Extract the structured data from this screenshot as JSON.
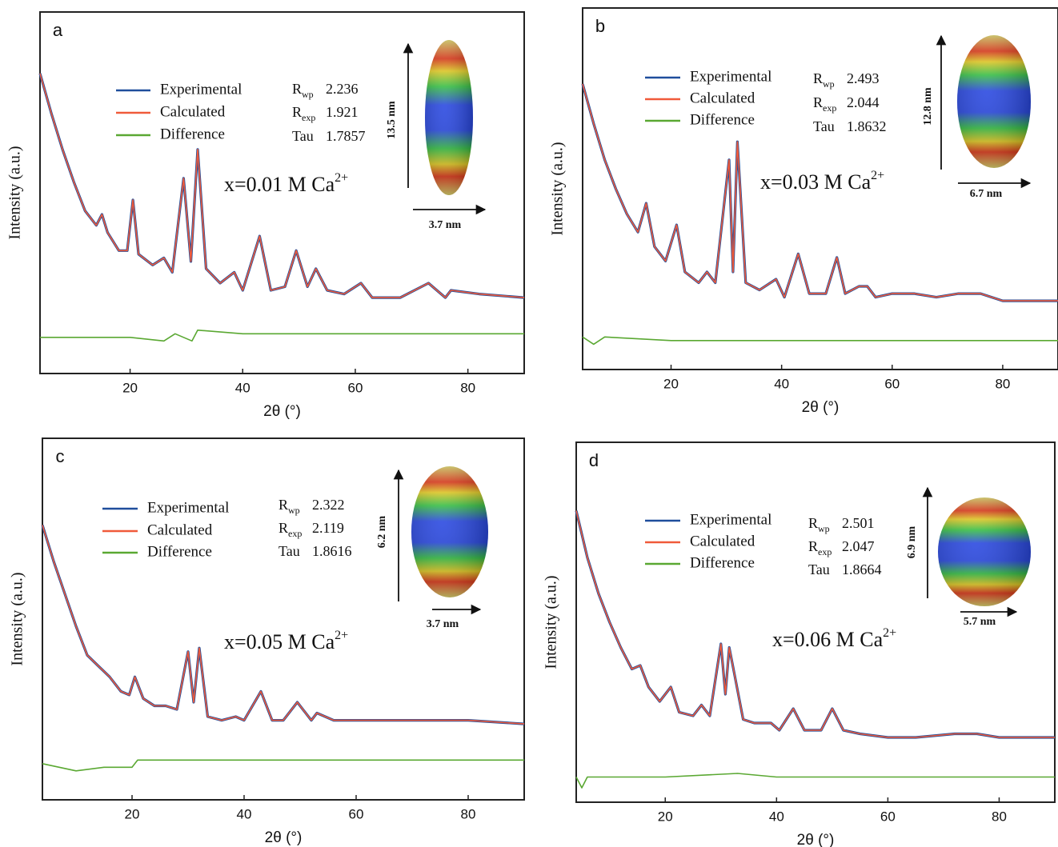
{
  "chart_data": [
    {
      "type": "line",
      "panel": "a",
      "xlabel": "2θ (°)",
      "ylabel": "Intensity (a.u.)",
      "xlim": [
        4,
        90
      ],
      "ylim": [
        0,
        100
      ],
      "xticks": [
        20,
        40,
        60,
        80
      ],
      "annotation": {
        "text": "x=0.01 M Ca",
        "superscript": "2+"
      },
      "stats": [
        {
          "label": "R",
          "sub": "wp",
          "value": 2.236
        },
        {
          "label": "R",
          "sub": "exp",
          "value": 1.921
        },
        {
          "label": "Tau",
          "value": 1.7857
        }
      ],
      "size_labels": {
        "vertical": "13.5 nm",
        "horizontal": "3.7 nm"
      },
      "series": [
        {
          "name": "Experimental",
          "color": "#1f4e9c",
          "x": [
            4,
            6,
            8,
            10,
            12,
            14,
            15,
            16,
            18,
            19.5,
            20.5,
            21.5,
            24,
            26,
            27.5,
            29.5,
            30.8,
            32,
            33.5,
            36,
            38.5,
            40,
            43,
            45,
            47.5,
            49.5,
            51.5,
            53,
            55,
            58,
            61,
            63,
            68,
            73,
            76,
            77,
            82,
            90
          ],
          "values": [
            83,
            72,
            62,
            53,
            45,
            41,
            44,
            39,
            34,
            34,
            48,
            33,
            30,
            32,
            28,
            54,
            31,
            62,
            29,
            25,
            28,
            23,
            38,
            23,
            24,
            34,
            24,
            29,
            23,
            22,
            25,
            21,
            21,
            25,
            21,
            23,
            22,
            21
          ]
        },
        {
          "name": "Calculated",
          "color": "#f05a3a",
          "x": [
            4,
            6,
            8,
            10,
            12,
            14,
            15,
            16,
            18,
            19.5,
            20.5,
            21.5,
            24,
            26,
            27.5,
            29.5,
            30.8,
            32,
            33.5,
            36,
            38.5,
            40,
            43,
            45,
            47.5,
            49.5,
            51.5,
            53,
            55,
            58,
            61,
            63,
            68,
            73,
            76,
            77,
            82,
            90
          ],
          "values": [
            83,
            72,
            62,
            53,
            45,
            41,
            44,
            39,
            34,
            34,
            48,
            33,
            30,
            32,
            28,
            54,
            31,
            62,
            29,
            25,
            28,
            23,
            38,
            23,
            24,
            34,
            24,
            29,
            23,
            22,
            25,
            21,
            21,
            25,
            21,
            23,
            22,
            21
          ]
        },
        {
          "name": "Difference",
          "color": "#5aa832",
          "x": [
            4,
            10,
            20,
            26,
            28,
            31,
            32,
            40,
            60,
            90
          ],
          "values": [
            10,
            10,
            10,
            9,
            11,
            9,
            12,
            11,
            11,
            11
          ]
        }
      ]
    },
    {
      "type": "line",
      "panel": "b",
      "xlabel": "2θ (°)",
      "ylabel": "Intensity (a.u.)",
      "xlim": [
        4,
        90
      ],
      "ylim": [
        0,
        100
      ],
      "xticks": [
        20,
        40,
        60,
        80
      ],
      "annotation": {
        "text": "x=0.03 M Ca",
        "superscript": "2+"
      },
      "stats": [
        {
          "label": "R",
          "sub": "wp",
          "value": 2.493
        },
        {
          "label": "R",
          "sub": "exp",
          "value": 2.044
        },
        {
          "label": "Tau",
          "value": 1.8632
        }
      ],
      "size_labels": {
        "vertical": "12.8 nm",
        "horizontal": "6.7 nm"
      },
      "series": [
        {
          "name": "Experimental",
          "color": "#1f4e9c",
          "x": [
            4,
            6,
            8,
            10,
            12,
            14,
            15.5,
            17,
            19,
            21,
            22.5,
            25,
            26.5,
            28,
            30.5,
            31.2,
            32,
            33.5,
            36,
            39,
            40.5,
            43,
            45,
            48,
            50,
            51.5,
            54,
            55.5,
            57,
            60,
            64,
            68,
            72,
            76,
            80,
            90
          ],
          "values": [
            79,
            68,
            58,
            50,
            43,
            38,
            46,
            34,
            30,
            40,
            27,
            24,
            27,
            24,
            58,
            27,
            63,
            24,
            22,
            25,
            20,
            32,
            21,
            21,
            31,
            21,
            23,
            23,
            20,
            21,
            21,
            20,
            21,
            21,
            19,
            19
          ]
        },
        {
          "name": "Calculated",
          "color": "#f05a3a",
          "x": [
            4,
            6,
            8,
            10,
            12,
            14,
            15.5,
            17,
            19,
            21,
            22.5,
            25,
            26.5,
            28,
            30.5,
            31.2,
            32,
            33.5,
            36,
            39,
            40.5,
            43,
            45,
            48,
            50,
            51.5,
            54,
            55.5,
            57,
            60,
            64,
            68,
            72,
            76,
            80,
            90
          ],
          "values": [
            79,
            68,
            58,
            50,
            43,
            38,
            46,
            34,
            30,
            40,
            27,
            24,
            27,
            24,
            58,
            27,
            63,
            24,
            22,
            25,
            20,
            32,
            21,
            21,
            31,
            21,
            23,
            23,
            20,
            21,
            21,
            20,
            21,
            21,
            19,
            19
          ]
        },
        {
          "name": "Difference",
          "color": "#5aa832",
          "x": [
            4,
            6,
            8,
            20,
            40,
            60,
            90
          ],
          "values": [
            9,
            7,
            9,
            8,
            8,
            8,
            8
          ]
        }
      ]
    },
    {
      "type": "line",
      "panel": "c",
      "xlabel": "2θ (°)",
      "ylabel": "Intensity (a.u.)",
      "xlim": [
        4,
        90
      ],
      "ylim": [
        0,
        100
      ],
      "xticks": [
        20,
        40,
        60,
        80
      ],
      "annotation": {
        "text": "x=0.05 M Ca",
        "superscript": "2+"
      },
      "stats": [
        {
          "label": "R",
          "sub": "wp",
          "value": 2.322
        },
        {
          "label": "R",
          "sub": "exp",
          "value": 2.119
        },
        {
          "label": "Tau",
          "value": 1.8616
        }
      ],
      "size_labels": {
        "vertical": "6.2 nm",
        "horizontal": "3.7 nm"
      },
      "series": [
        {
          "name": "Experimental",
          "color": "#1f4e9c",
          "x": [
            4,
            6,
            8,
            10,
            12,
            14,
            16,
            18,
            19.5,
            20.5,
            22,
            24,
            26,
            28,
            30,
            31,
            32,
            33.5,
            36,
            38.5,
            40,
            43,
            45,
            47,
            49.5,
            52,
            53,
            56,
            60,
            65,
            72,
            80,
            90
          ],
          "values": [
            76,
            66,
            57,
            48,
            40,
            37,
            34,
            30,
            29,
            34,
            28,
            26,
            26,
            25,
            41,
            27,
            42,
            23,
            22,
            23,
            22,
            30,
            22,
            22,
            27,
            22,
            24,
            22,
            22,
            22,
            22,
            22,
            21
          ]
        },
        {
          "name": "Calculated",
          "color": "#f05a3a",
          "x": [
            4,
            6,
            8,
            10,
            12,
            14,
            16,
            18,
            19.5,
            20.5,
            22,
            24,
            26,
            28,
            30,
            31,
            32,
            33.5,
            36,
            38.5,
            40,
            43,
            45,
            47,
            49.5,
            52,
            53,
            56,
            60,
            65,
            72,
            80,
            90
          ],
          "values": [
            76,
            66,
            57,
            48,
            40,
            37,
            34,
            30,
            29,
            34,
            28,
            26,
            26,
            25,
            41,
            27,
            42,
            23,
            22,
            23,
            22,
            30,
            22,
            22,
            27,
            22,
            24,
            22,
            22,
            22,
            22,
            22,
            21
          ]
        },
        {
          "name": "Difference",
          "color": "#5aa832",
          "x": [
            4,
            10,
            15,
            20,
            21,
            40,
            60,
            90
          ],
          "values": [
            10,
            8,
            9,
            9,
            11,
            11,
            11,
            11
          ]
        }
      ]
    },
    {
      "type": "line",
      "panel": "d",
      "xlabel": "2θ (°)",
      "ylabel": "Intensity (a.u.)",
      "xlim": [
        4,
        90
      ],
      "ylim": [
        0,
        100
      ],
      "xticks": [
        20,
        40,
        60,
        80
      ],
      "annotation": {
        "text": "x=0.06 M Ca",
        "superscript": "2+"
      },
      "stats": [
        {
          "label": "R",
          "sub": "wp",
          "value": 2.501
        },
        {
          "label": "R",
          "sub": "exp",
          "value": 2.047
        },
        {
          "label": "Tau",
          "value": 1.8664
        }
      ],
      "size_labels": {
        "vertical": "6.9 nm",
        "horizontal": "5.7 nm"
      },
      "series": [
        {
          "name": "Experimental",
          "color": "#1f4e9c",
          "x": [
            4,
            6,
            8,
            10,
            12,
            14,
            15.5,
            17,
            19,
            21,
            22.5,
            25,
            26.5,
            28,
            30,
            30.8,
            31.5,
            32.5,
            34,
            36,
            39,
            40.5,
            43,
            45,
            48,
            50,
            52,
            55,
            60,
            65,
            72,
            76,
            80,
            90
          ],
          "values": [
            81,
            68,
            58,
            50,
            43,
            37,
            38,
            32,
            28,
            32,
            25,
            24,
            27,
            24,
            44,
            30,
            43,
            35,
            23,
            22,
            22,
            20,
            26,
            20,
            20,
            26,
            20,
            19,
            18,
            18,
            19,
            19,
            18,
            18
          ]
        },
        {
          "name": "Calculated",
          "color": "#f05a3a",
          "x": [
            4,
            6,
            8,
            10,
            12,
            14,
            15.5,
            17,
            19,
            21,
            22.5,
            25,
            26.5,
            28,
            30,
            30.8,
            31.5,
            32.5,
            34,
            36,
            39,
            40.5,
            43,
            45,
            48,
            50,
            52,
            55,
            60,
            65,
            72,
            76,
            80,
            90
          ],
          "values": [
            81,
            68,
            58,
            50,
            43,
            37,
            38,
            32,
            28,
            32,
            25,
            24,
            27,
            24,
            44,
            30,
            43,
            35,
            23,
            22,
            22,
            20,
            26,
            20,
            20,
            26,
            20,
            19,
            18,
            18,
            19,
            19,
            18,
            18
          ]
        },
        {
          "name": "Difference",
          "color": "#5aa832",
          "x": [
            4,
            5,
            6,
            8,
            20,
            33,
            40,
            60,
            90
          ],
          "values": [
            7,
            4,
            7,
            7,
            7,
            8,
            7,
            7,
            7
          ]
        }
      ]
    }
  ]
}
